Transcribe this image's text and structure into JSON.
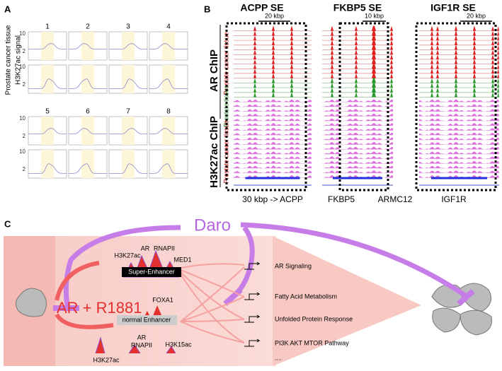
{
  "panel_a": {
    "label": "A",
    "y_title_1": "Prostate cancer tissue",
    "y_title_2": "H3K27ac signal",
    "numbers_top": [
      "1",
      "2",
      "3",
      "4"
    ],
    "numbers_bottom": [
      "5",
      "6",
      "7",
      "8"
    ],
    "y_ticks": [
      "10",
      "2"
    ]
  },
  "panel_b": {
    "label": "B",
    "columns": [
      {
        "title": "ACPP SE",
        "scale": "20 kbp"
      },
      {
        "title": "FKBP5 SE",
        "scale": "10 kbp"
      },
      {
        "title": "IGF1R SE",
        "scale": "20 kbp"
      }
    ],
    "group_ar": "AR ChIP",
    "group_h3": "H3K27ac ChIP",
    "sub_cancer_1": "Prostate cancer tissue",
    "sub_normal": "Prostate tissue",
    "sub_cancer_2": "Prostate cancer tissue",
    "genes": [
      "30 kbp -> ACPP",
      "FKBP5",
      "ARMC12",
      "IGF1R"
    ]
  },
  "panel_c": {
    "label": "C",
    "drug": "Daro",
    "stimulus": "AR + R1881",
    "super_enhancer": {
      "box": "Super-Enhancer",
      "marks": [
        "H3K27ac",
        "AR",
        "RNAPII",
        "MED1"
      ]
    },
    "normal_enhancer": {
      "box": "normal Enhancer",
      "marks": [
        "FOXA1",
        "H3K27ac",
        "AR",
        "RNAPII",
        "H3K15ac"
      ]
    },
    "pathways": [
      "AR Signaling",
      "Fatty Acid Metabolism",
      "Unfolded Protein Response",
      "PI3K AKT MTOR Pathway",
      "...."
    ]
  }
}
